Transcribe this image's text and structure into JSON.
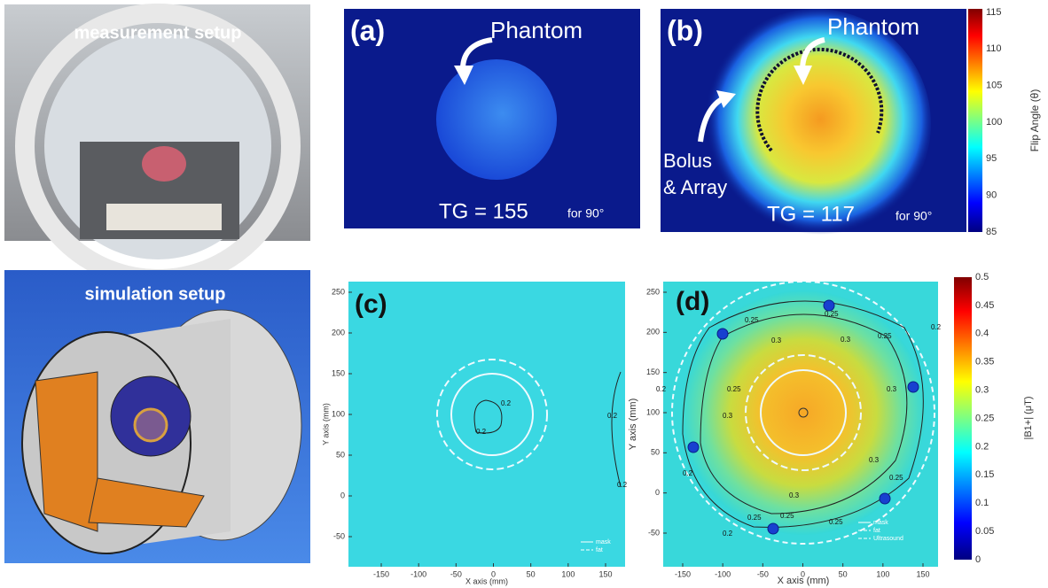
{
  "measurement": {
    "label": "measurement setup"
  },
  "simulation": {
    "label": "simulation setup"
  },
  "panel_a": {
    "tag": "(a)",
    "annotation": "Phantom",
    "tg": "TG = 155",
    "tg_note": "for 90°"
  },
  "panel_b": {
    "tag": "(b)",
    "annotation": "Phantom",
    "bolus": [
      "Bolus",
      "& Array"
    ],
    "tg": "TG = 117",
    "tg_note": "for 90°",
    "colorbar": {
      "label": "Flip Angle (θ)",
      "ticks": [
        "115",
        "110",
        "105",
        "100",
        "95",
        "90",
        "85"
      ]
    }
  },
  "panel_c": {
    "tag": "(c)",
    "xlabel": "X axis (mm)",
    "ylabel": "Y axis (mm)",
    "xticks": [
      "-150",
      "-100",
      "-50",
      "0",
      "50",
      "100",
      "150"
    ],
    "yticks": [
      "250",
      "200",
      "150",
      "100",
      "50",
      "0",
      "-50"
    ],
    "contour_labels": [
      "0.2",
      "0.2",
      "0.2",
      "0.2"
    ],
    "legend": [
      "mask",
      "fat"
    ]
  },
  "panel_d": {
    "tag": "(d)",
    "xlabel": "X axis (mm)",
    "ylabel": "Y axis (mm)",
    "xticks": [
      "-150",
      "-100",
      "-50",
      "0",
      "50",
      "100",
      "150"
    ],
    "yticks": [
      "250",
      "200",
      "150",
      "100",
      "50",
      "0",
      "-50"
    ],
    "contour_labels": [
      "0.25",
      "0.25",
      "0.3",
      "0.3",
      "0.25",
      "0.3",
      "0.3",
      "0.25",
      "0.25",
      "0.3",
      "0.3",
      "0.25",
      "0.2",
      "0.2",
      "0.2",
      "0.25",
      "0.2",
      "0.25"
    ],
    "legend": [
      "mask",
      "fat",
      "Ultrasound"
    ],
    "colorbar": {
      "label": "|B1+| (μT)",
      "ticks": [
        "0.5",
        "0.45",
        "0.4",
        "0.35",
        "0.3",
        "0.25",
        "0.2",
        "0.15",
        "0.1",
        "0.05",
        "0"
      ]
    }
  }
}
